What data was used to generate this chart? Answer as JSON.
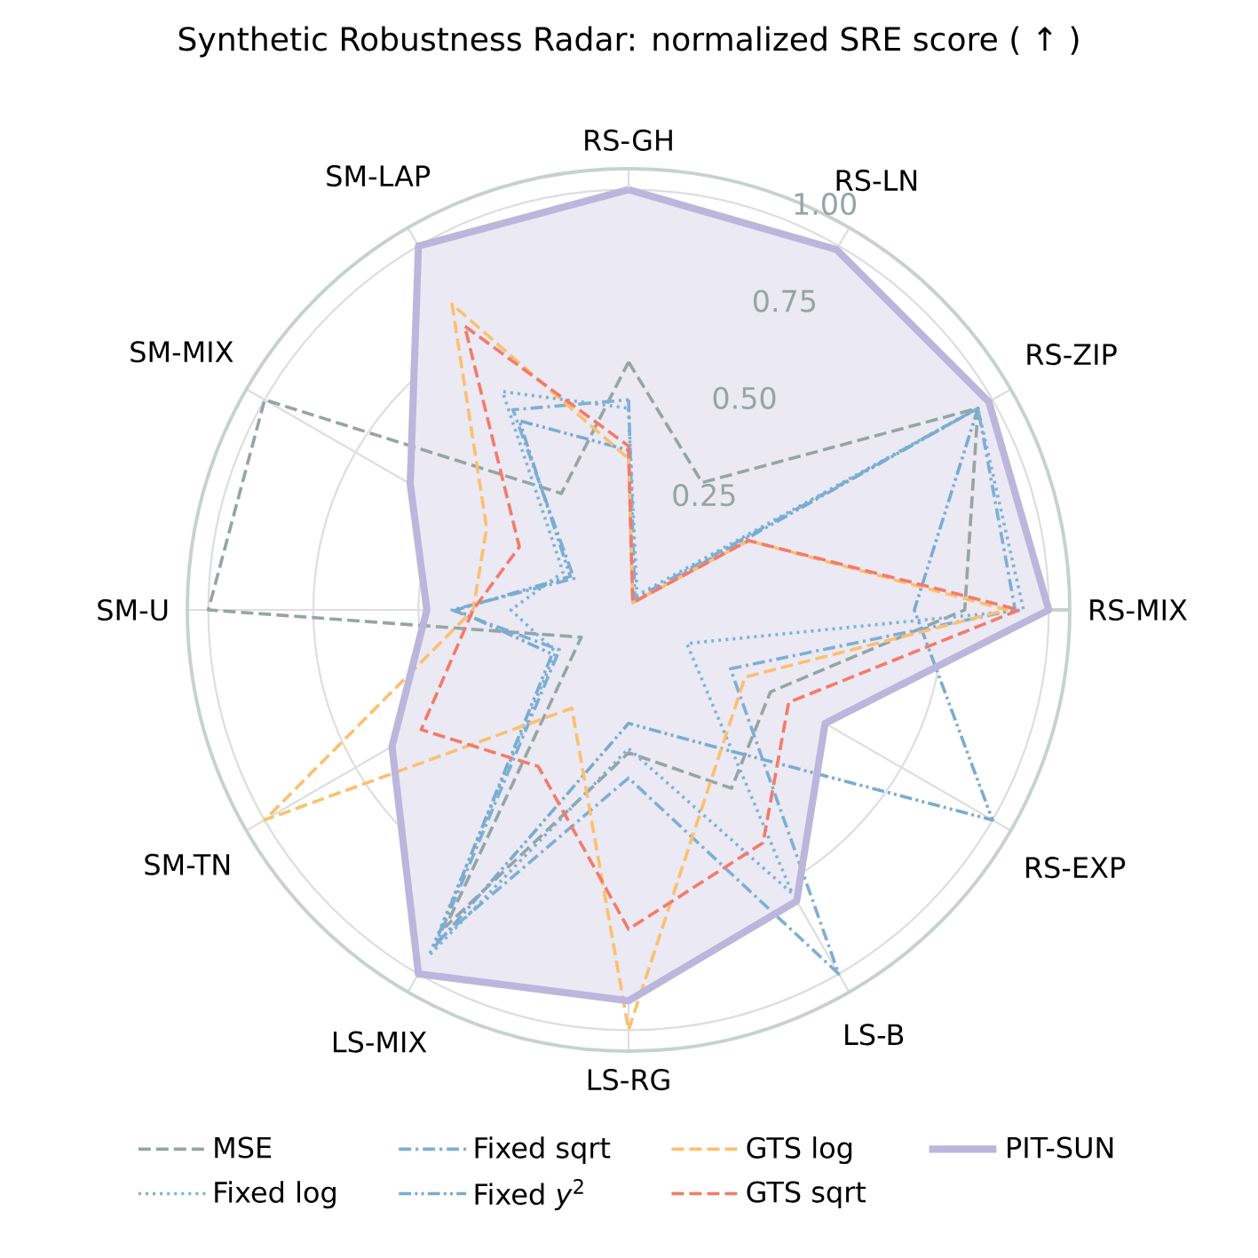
{
  "chart_data": {
    "type": "radar",
    "title": "Synthetic Robustness Radar: normalized SRE score ( ↑ )",
    "categories": [
      "RS-GH",
      "RS-LN",
      "RS-ZIP",
      "RS-MIX",
      "RS-EXP",
      "LS-B",
      "LS-RG",
      "LS-MIX",
      "SM-TN",
      "SM-U",
      "SM-MIX",
      "SM-LAP"
    ],
    "ylim": [
      0,
      1.05
    ],
    "yticks": [
      {
        "value": 0.25,
        "label": "0.25"
      },
      {
        "value": 0.5,
        "label": "0.50"
      },
      {
        "value": 0.75,
        "label": "0.75"
      },
      {
        "value": 1.0,
        "label": "1.00"
      }
    ],
    "grid": true,
    "legend": "bottom",
    "marker": "none",
    "series": [
      {
        "name": "MSE",
        "color": "#95a5a6",
        "line_style": "dashed",
        "values": [
          0.59,
          0.35,
          0.96,
          0.8,
          0.39,
          0.49,
          0.34,
          0.87,
          0.13,
          1.0,
          1.0,
          0.32
        ]
      },
      {
        "name": "Fixed log",
        "color": "#7fb3d5",
        "line_style": "dotted",
        "values": [
          0.48,
          0.04,
          0.96,
          0.94,
          0.16,
          0.78,
          0.33,
          0.95,
          0.2,
          0.28,
          0.18,
          0.6
        ]
      },
      {
        "name": "Fixed sqrt",
        "color": "#7eafd4",
        "line_style": "dashdot",
        "values": [
          0.5,
          0.03,
          0.96,
          0.92,
          0.28,
          1.0,
          0.4,
          0.91,
          0.19,
          0.42,
          0.15,
          0.55
        ]
      },
      {
        "name": "Fixed *y*$^{2}$",
        "color": "#7aaccf",
        "line_style": "dashdotdot",
        "values": [
          0.38,
          0.02,
          0.96,
          0.68,
          1.0,
          0.37,
          0.27,
          0.93,
          0.21,
          0.41,
          0.16,
          0.52
        ]
      },
      {
        "name": "GTS log",
        "color": "#fdbf6f",
        "line_style": "dashed",
        "values": [
          0.36,
          0.02,
          0.33,
          0.9,
          0.32,
          0.42,
          1.0,
          0.27,
          1.0,
          0.37,
          0.39,
          0.84
        ]
      },
      {
        "name": "GTS sqrt",
        "color": "#f37b6a",
        "line_style": "dashed",
        "values": [
          0.39,
          0.02,
          0.33,
          0.93,
          0.44,
          0.64,
          0.76,
          0.43,
          0.57,
          0.37,
          0.3,
          0.78
        ]
      },
      {
        "name": "PIT-SUN",
        "type": "area",
        "color": "#bcb5dc",
        "line_style": "solid",
        "values": [
          1.0,
          0.99,
          0.99,
          1.0,
          0.54,
          0.8,
          0.93,
          1.0,
          0.65,
          0.48,
          0.6,
          1.0
        ]
      }
    ]
  }
}
